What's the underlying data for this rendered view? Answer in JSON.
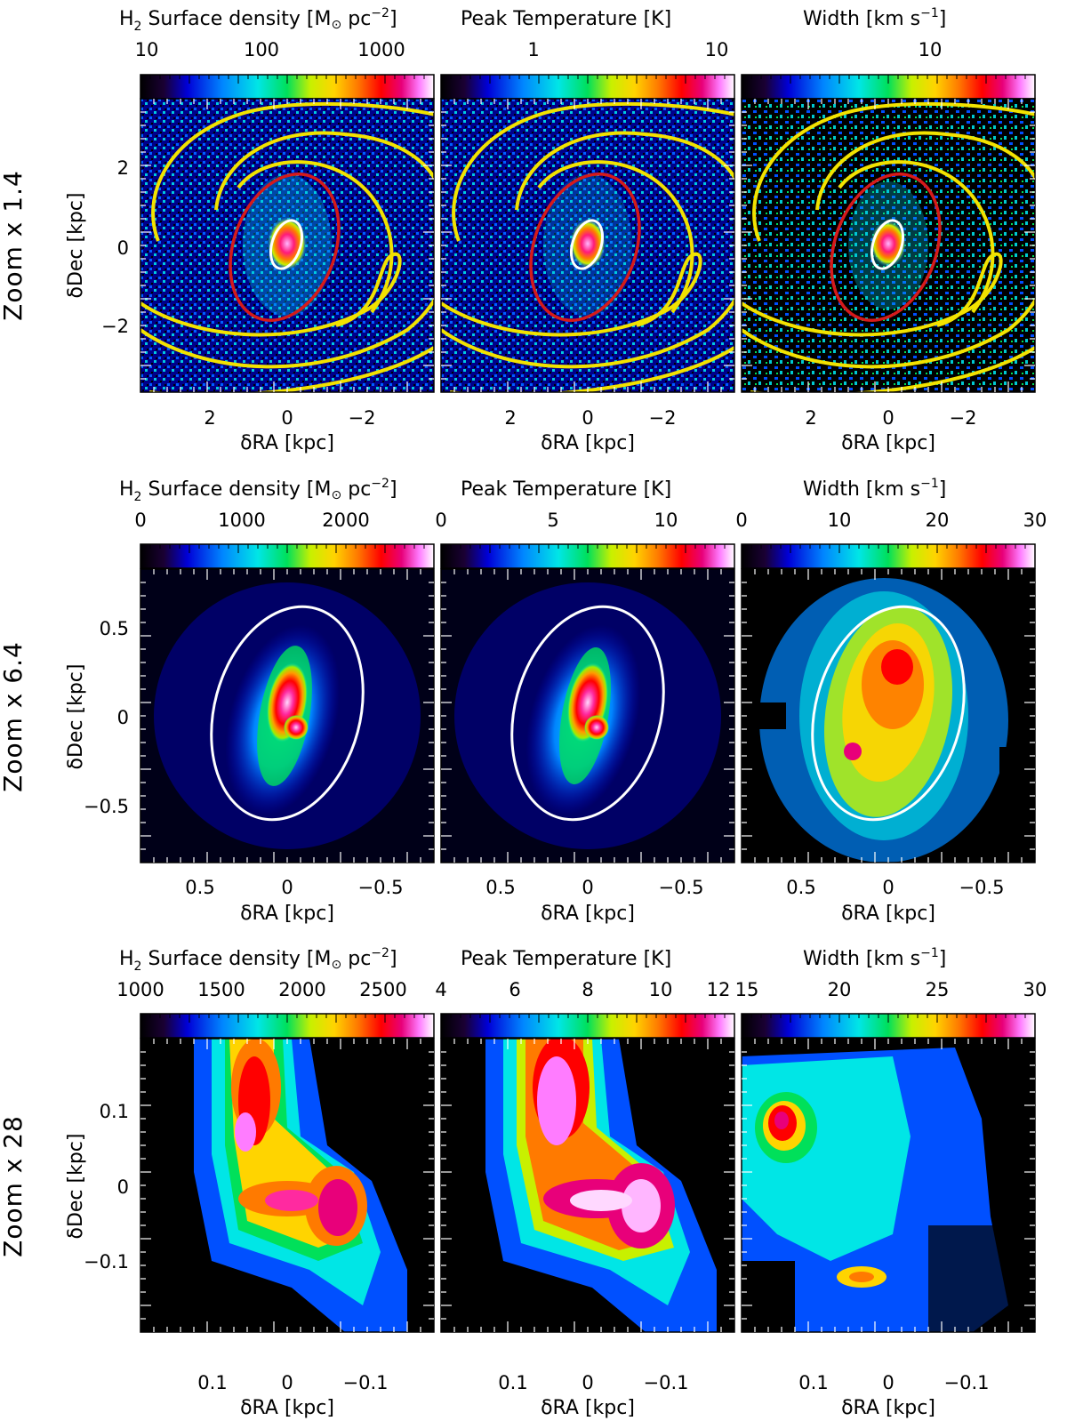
{
  "figure": {
    "rows": [
      {
        "row_label": "Zoom x 1.4",
        "ylabel": "δDec [kpc]",
        "xlabel": "δRA [kpc]",
        "yticks": [
          "2",
          "0",
          "−2"
        ],
        "xticks": [
          "2",
          "0",
          "−2"
        ],
        "panels": [
          {
            "title_prefix": "H",
            "title_sub": "2",
            "title_main": " Surface density [M",
            "title_sun": "⊙",
            "title_unit": " pc",
            "title_sup": "−2",
            "title_end": "]",
            "cbar_ticks": [
              "10",
              "100",
              "1000"
            ],
            "scale": "log",
            "colormap": "rainbow-black-to-white"
          },
          {
            "title": "Peak Temperature [K]",
            "cbar_ticks": [
              "1",
              "10"
            ],
            "scale": "log",
            "colormap": "rainbow-black-to-white"
          },
          {
            "title_main": "Width [km s",
            "title_sup": "−1",
            "title_end": "]",
            "cbar_ticks": [
              "10"
            ],
            "scale": "log",
            "colormap": "rainbow-black-to-white"
          }
        ],
        "overlays": [
          "yellow spiral-arm curves",
          "red ellipse",
          "white ellipse"
        ]
      },
      {
        "row_label": "Zoom x 6.4",
        "ylabel": "δDec [kpc]",
        "xlabel": "δRA [kpc]",
        "yticks": [
          "0.5",
          "0",
          "−0.5"
        ],
        "xticks": [
          "0.5",
          "0",
          "−0.5"
        ],
        "panels": [
          {
            "title_prefix": "H",
            "title_sub": "2",
            "title_main": " Surface density [M",
            "title_sun": "⊙",
            "title_unit": " pc",
            "title_sup": "−2",
            "title_end": "]",
            "cbar_ticks": [
              "0",
              "1000",
              "2000"
            ],
            "scale": "linear"
          },
          {
            "title": "Peak Temperature [K]",
            "cbar_ticks": [
              "0",
              "5",
              "10"
            ],
            "scale": "linear"
          },
          {
            "title_main": "Width [km s",
            "title_sup": "−1",
            "title_end": "]",
            "cbar_ticks": [
              "0",
              "10",
              "20",
              "30"
            ],
            "scale": "linear"
          }
        ],
        "overlays": [
          "white ellipse"
        ]
      },
      {
        "row_label": "Zoom x 28",
        "ylabel": "δDec [kpc]",
        "xlabel": "δRA [kpc]",
        "yticks": [
          "0.1",
          "0",
          "−0.1"
        ],
        "xticks": [
          "0.1",
          "0",
          "−0.1"
        ],
        "panels": [
          {
            "title_prefix": "H",
            "title_sub": "2",
            "title_main": " Surface density [M",
            "title_sun": "⊙",
            "title_unit": " pc",
            "title_sup": "−2",
            "title_end": "]",
            "cbar_ticks": [
              "1000",
              "1500",
              "2000",
              "2500"
            ],
            "scale": "linear"
          },
          {
            "title": "Peak Temperature [K]",
            "cbar_ticks": [
              "4",
              "6",
              "8",
              "10",
              "12"
            ],
            "scale": "linear"
          },
          {
            "title_main": "Width [km s",
            "title_sup": "−1",
            "title_end": "]",
            "cbar_ticks": [
              "15",
              "20",
              "25",
              "30"
            ],
            "scale": "linear"
          }
        ],
        "overlays": []
      }
    ],
    "colors": {
      "spiral": "#f2e200",
      "red_ellipse": "#d61a1a",
      "white_ellipse": "#ffffff",
      "background_map": "#000000"
    }
  }
}
